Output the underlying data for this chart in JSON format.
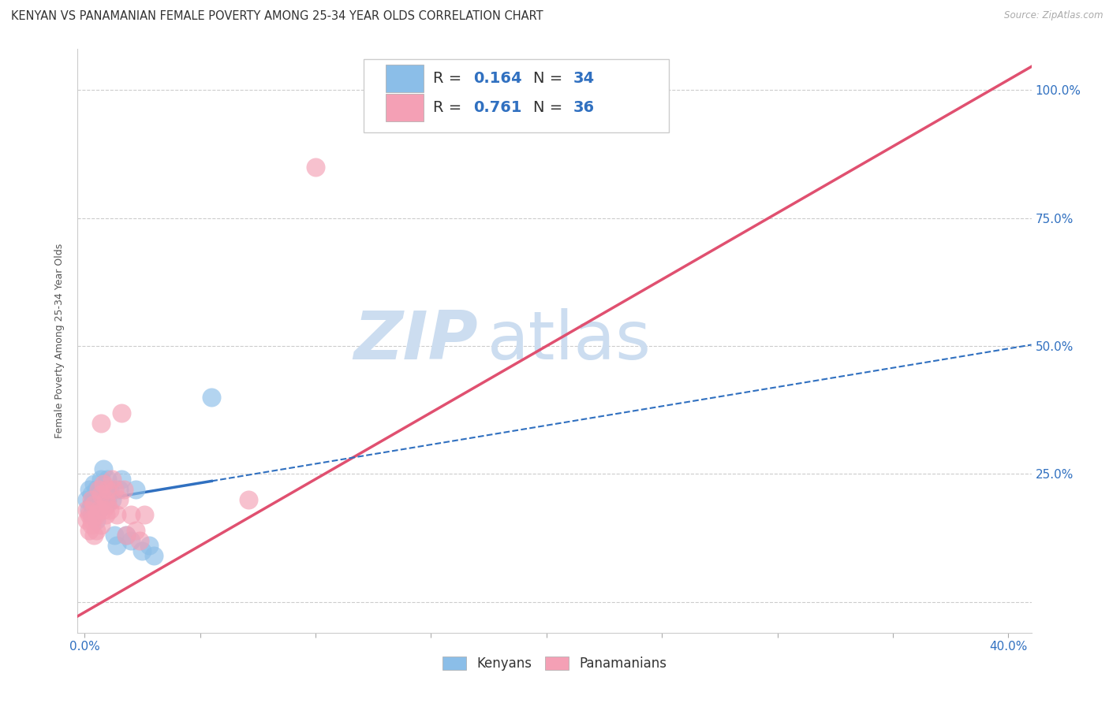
{
  "title": "KENYAN VS PANAMANIAN FEMALE POVERTY AMONG 25-34 YEAR OLDS CORRELATION CHART",
  "source": "Source: ZipAtlas.com",
  "xlim": [
    -0.003,
    0.41
  ],
  "ylim": [
    -0.06,
    1.08
  ],
  "xtick_positions": [
    0.0,
    0.05,
    0.1,
    0.15,
    0.2,
    0.25,
    0.3,
    0.35,
    0.4
  ],
  "xtick_labels_show": {
    "0.0": "0.0%",
    "0.40": "40.0%"
  },
  "ytick_positions": [
    0.0,
    0.25,
    0.5,
    0.75,
    1.0
  ],
  "ytick_labels": [
    "",
    "25.0%",
    "50.0%",
    "75.0%",
    "100.0%"
  ],
  "kenyan_R": 0.164,
  "kenyan_N": 34,
  "panama_R": 0.761,
  "panama_N": 36,
  "kenyan_color": "#8bbee8",
  "panama_color": "#f4a0b5",
  "kenyan_line_color": "#3070c0",
  "panama_line_color": "#e05070",
  "watermark_zip": "ZIP",
  "watermark_atlas": "atlas",
  "watermark_color": "#ccddf0",
  "ylabel": "Female Poverty Among 25-34 Year Olds",
  "kenyan_x": [
    0.001,
    0.002,
    0.002,
    0.003,
    0.003,
    0.003,
    0.004,
    0.004,
    0.005,
    0.005,
    0.005,
    0.006,
    0.006,
    0.007,
    0.007,
    0.008,
    0.008,
    0.009,
    0.009,
    0.01,
    0.01,
    0.011,
    0.012,
    0.013,
    0.014,
    0.015,
    0.016,
    0.018,
    0.02,
    0.022,
    0.025,
    0.028,
    0.03,
    0.055
  ],
  "kenyan_y": [
    0.2,
    0.22,
    0.18,
    0.21,
    0.19,
    0.17,
    0.23,
    0.2,
    0.22,
    0.19,
    0.16,
    0.21,
    0.18,
    0.22,
    0.24,
    0.21,
    0.26,
    0.19,
    0.22,
    0.2,
    0.24,
    0.22,
    0.2,
    0.13,
    0.11,
    0.22,
    0.24,
    0.13,
    0.12,
    0.22,
    0.1,
    0.11,
    0.09,
    0.4
  ],
  "panama_x": [
    0.001,
    0.001,
    0.002,
    0.002,
    0.003,
    0.003,
    0.003,
    0.004,
    0.004,
    0.005,
    0.005,
    0.006,
    0.006,
    0.007,
    0.007,
    0.007,
    0.008,
    0.008,
    0.009,
    0.009,
    0.01,
    0.01,
    0.011,
    0.012,
    0.013,
    0.014,
    0.015,
    0.016,
    0.017,
    0.018,
    0.02,
    0.022,
    0.024,
    0.026,
    0.071,
    0.1
  ],
  "panama_y": [
    0.16,
    0.18,
    0.17,
    0.14,
    0.15,
    0.16,
    0.2,
    0.13,
    0.19,
    0.17,
    0.14,
    0.18,
    0.22,
    0.21,
    0.15,
    0.35,
    0.23,
    0.18,
    0.17,
    0.2,
    0.19,
    0.22,
    0.18,
    0.24,
    0.22,
    0.17,
    0.2,
    0.37,
    0.22,
    0.13,
    0.17,
    0.14,
    0.12,
    0.17,
    0.2,
    0.85
  ]
}
